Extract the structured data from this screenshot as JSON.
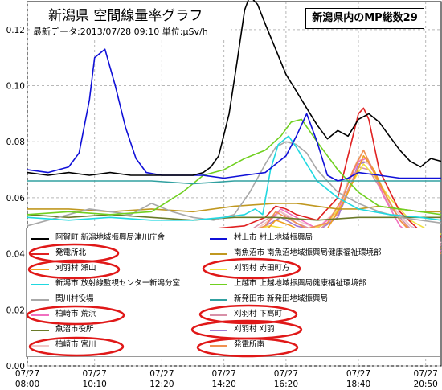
{
  "header": {
    "title": "新潟県 空間線量率グラフ",
    "subtitle": "最新データ:2013/07/28 09:10 単位:μSv/h",
    "mp_total": "新潟県内のMP総数29"
  },
  "legend": {
    "left": [
      {
        "label": "阿賀町 新潟地域振興局津川庁舎",
        "color": "#000000"
      },
      {
        "label": "発電所北",
        "color": "#e02020"
      },
      {
        "label": "刈羽村 瀬山",
        "color": "#f0a020"
      },
      {
        "label": "新潟市 放射線監視センター新潟分室",
        "color": "#20d8e0"
      },
      {
        "label": "関川村役場",
        "color": "#a8a8a8"
      },
      {
        "label": "柏崎市 荒浜",
        "color": "#f070c0"
      },
      {
        "label": "魚沼市役所",
        "color": "#6a7a28"
      },
      {
        "label": "柏崎市 宮川",
        "color": "#f0c8c8"
      }
    ],
    "right": [
      {
        "label": "村上市 村上地域振興局",
        "color": "#1010d8"
      },
      {
        "label": "南魚沼市 南魚沼地域振興局健康福祉環境部",
        "color": "#c09820"
      },
      {
        "label": "刈羽村 赤田町方",
        "color": "#f0e040"
      },
      {
        "label": "上越市 上越地域振興局健康福祉環境部",
        "color": "#70d020"
      },
      {
        "label": "新発田市 新発田地域振興局",
        "color": "#30a0a0"
      },
      {
        "label": "刈羽村 下高町",
        "color": "#d890a8"
      },
      {
        "label": "刈羽村 刈羽",
        "color": "#a078d0"
      },
      {
        "label": "発電所南",
        "color": "#f09050"
      }
    ]
  },
  "chart_data": {
    "type": "line",
    "title": "新潟県 空間線量率グラフ",
    "ylabel": "μSv/h",
    "ylim": [
      0,
      0.13
    ],
    "yticks": [
      "0.00",
      "0.02",
      "0.04",
      "0.06",
      "0.08",
      "0.10",
      "0.12"
    ],
    "xlim": [
      480,
      1280
    ],
    "xticks": [
      {
        "t": 480,
        "date": "07/27",
        "time": "08:00"
      },
      {
        "t": 610,
        "date": "07/27",
        "time": "10:10"
      },
      {
        "t": 740,
        "date": "07/27",
        "time": "12:20"
      },
      {
        "t": 860,
        "date": "07/27",
        "time": "14:20"
      },
      {
        "t": 980,
        "date": "07/27",
        "time": "16:20"
      },
      {
        "t": 1120,
        "date": "07/27",
        "time": "18:40"
      },
      {
        "t": 1250,
        "date": "07/27",
        "time": "20:50"
      }
    ],
    "series": [
      {
        "name": "阿賀町 新潟地域振興局津川庁舎",
        "color": "#000000",
        "t": [
          480,
          520,
          560,
          600,
          640,
          680,
          720,
          760,
          800,
          820,
          835,
          850,
          870,
          885,
          900,
          910,
          925,
          940,
          960,
          980,
          1000,
          1020,
          1040,
          1060,
          1080,
          1100,
          1120,
          1140,
          1160,
          1180,
          1200,
          1220,
          1240,
          1260,
          1280
        ],
        "y": [
          0.069,
          0.068,
          0.069,
          0.068,
          0.069,
          0.068,
          0.068,
          0.068,
          0.068,
          0.069,
          0.071,
          0.075,
          0.09,
          0.108,
          0.127,
          0.132,
          0.129,
          0.122,
          0.113,
          0.104,
          0.098,
          0.092,
          0.086,
          0.081,
          0.084,
          0.082,
          0.088,
          0.09,
          0.087,
          0.082,
          0.077,
          0.073,
          0.071,
          0.074,
          0.073
        ]
      },
      {
        "name": "村上市 村上地域振興局",
        "color": "#1010d8",
        "t": [
          480,
          520,
          560,
          580,
          600,
          610,
          630,
          650,
          670,
          690,
          710,
          740,
          780,
          820,
          860,
          900,
          940,
          980,
          1000,
          1020,
          1040,
          1060,
          1080,
          1100,
          1120,
          1160,
          1200,
          1240,
          1280
        ],
        "y": [
          0.07,
          0.069,
          0.071,
          0.076,
          0.095,
          0.11,
          0.113,
          0.1,
          0.085,
          0.074,
          0.069,
          0.068,
          0.068,
          0.068,
          0.067,
          0.068,
          0.069,
          0.075,
          0.082,
          0.09,
          0.08,
          0.068,
          0.066,
          0.067,
          0.069,
          0.068,
          0.067,
          0.067,
          0.067
        ]
      },
      {
        "name": "新発田市 新発田地域振興局",
        "color": "#30a0a0",
        "t": [
          480,
          560,
          640,
          720,
          800,
          880,
          960,
          1040,
          1120,
          1200,
          1280
        ],
        "y": [
          0.066,
          0.066,
          0.066,
          0.066,
          0.065,
          0.066,
          0.066,
          0.066,
          0.066,
          0.066,
          0.066
        ]
      },
      {
        "name": "上越市 上越地域振興局健康福祉環境部",
        "color": "#70d020",
        "t": [
          480,
          560,
          640,
          720,
          780,
          820,
          860,
          900,
          940,
          970,
          990,
          1010,
          1040,
          1080,
          1120,
          1160,
          1200,
          1240,
          1280
        ],
        "y": [
          0.054,
          0.055,
          0.054,
          0.055,
          0.062,
          0.068,
          0.07,
          0.074,
          0.077,
          0.082,
          0.087,
          0.088,
          0.08,
          0.07,
          0.062,
          0.057,
          0.056,
          0.055,
          0.054
        ]
      },
      {
        "name": "新潟市 放射線監視センター新潟分室",
        "color": "#20d8e0",
        "t": [
          480,
          560,
          640,
          720,
          800,
          860,
          900,
          920,
          935,
          950,
          965,
          985,
          1000,
          1020,
          1040,
          1080,
          1120,
          1180,
          1240,
          1280
        ],
        "y": [
          0.053,
          0.052,
          0.053,
          0.052,
          0.052,
          0.053,
          0.054,
          0.056,
          0.054,
          0.07,
          0.079,
          0.082,
          0.078,
          0.072,
          0.066,
          0.06,
          0.056,
          0.054,
          0.053,
          0.052
        ]
      },
      {
        "name": "関川村役場",
        "color": "#a8a8a8",
        "t": [
          480,
          520,
          560,
          600,
          640,
          680,
          720,
          760,
          800,
          840,
          880,
          910,
          940,
          960,
          980,
          1000,
          1020,
          1040,
          1080,
          1120,
          1160,
          1200,
          1240,
          1280
        ],
        "y": [
          0.05,
          0.052,
          0.054,
          0.056,
          0.055,
          0.054,
          0.058,
          0.055,
          0.053,
          0.052,
          0.054,
          0.062,
          0.072,
          0.078,
          0.08,
          0.079,
          0.076,
          0.07,
          0.062,
          0.058,
          0.055,
          0.053,
          0.052,
          0.051
        ]
      },
      {
        "name": "南魚沼市 南魚沼地域振興局健康福祉環境部",
        "color": "#c09820",
        "t": [
          480,
          560,
          640,
          720,
          800,
          880,
          960,
          1000,
          1040,
          1080,
          1120,
          1160,
          1200,
          1240,
          1280
        ],
        "y": [
          0.056,
          0.056,
          0.055,
          0.056,
          0.055,
          0.057,
          0.058,
          0.058,
          0.057,
          0.056,
          0.056,
          0.057,
          0.056,
          0.055,
          0.055
        ]
      },
      {
        "name": "魚沼市役所",
        "color": "#6a7a28",
        "t": [
          480,
          560,
          640,
          720,
          800,
          880,
          960,
          1040,
          1120,
          1200,
          1280
        ],
        "y": [
          0.054,
          0.053,
          0.054,
          0.053,
          0.052,
          0.053,
          0.053,
          0.052,
          0.053,
          0.053,
          0.053
        ]
      },
      {
        "name": "発電所北",
        "color": "#e02020",
        "t": [
          480,
          600,
          720,
          840,
          900,
          940,
          960,
          980,
          1000,
          1040,
          1080,
          1100,
          1120,
          1130,
          1140,
          1160,
          1200,
          1240,
          1280
        ],
        "y": [
          0.049,
          0.049,
          0.049,
          0.049,
          0.05,
          0.053,
          0.057,
          0.056,
          0.054,
          0.052,
          0.06,
          0.075,
          0.09,
          0.092,
          0.088,
          0.07,
          0.055,
          0.048,
          0.046
        ]
      },
      {
        "name": "発電所南",
        "color": "#f09050",
        "t": [
          480,
          600,
          720,
          840,
          900,
          940,
          960,
          990,
          1020,
          1060,
          1090,
          1110,
          1130,
          1140,
          1160,
          1200,
          1240,
          1280
        ],
        "y": [
          0.046,
          0.046,
          0.047,
          0.047,
          0.047,
          0.05,
          0.055,
          0.052,
          0.049,
          0.051,
          0.06,
          0.07,
          0.077,
          0.073,
          0.065,
          0.052,
          0.044,
          0.04
        ]
      },
      {
        "name": "刈羽村 瀬山",
        "color": "#f0a020",
        "t": [
          480,
          600,
          720,
          840,
          900,
          940,
          960,
          990,
          1020,
          1060,
          1090,
          1110,
          1130,
          1150,
          1170,
          1200,
          1240,
          1280
        ],
        "y": [
          0.044,
          0.044,
          0.045,
          0.045,
          0.045,
          0.048,
          0.052,
          0.05,
          0.047,
          0.049,
          0.058,
          0.066,
          0.075,
          0.07,
          0.062,
          0.052,
          0.045,
          0.042
        ]
      },
      {
        "name": "刈羽村 赤田町方",
        "color": "#f0e040",
        "t": [
          480,
          600,
          720,
          840,
          900,
          950,
          980,
          1020,
          1060,
          1090,
          1110,
          1130,
          1150,
          1180,
          1220,
          1260,
          1280
        ],
        "y": [
          0.047,
          0.047,
          0.048,
          0.048,
          0.048,
          0.05,
          0.049,
          0.048,
          0.051,
          0.058,
          0.066,
          0.072,
          0.068,
          0.06,
          0.052,
          0.048,
          0.047
        ]
      },
      {
        "name": "柏崎市 荒浜",
        "color": "#f070c0",
        "t": [
          480,
          600,
          720,
          840,
          900,
          940,
          970,
          1000,
          1040,
          1080,
          1100,
          1120,
          1135,
          1150,
          1170,
          1200,
          1240,
          1280
        ],
        "y": [
          0.043,
          0.043,
          0.044,
          0.044,
          0.045,
          0.05,
          0.056,
          0.053,
          0.049,
          0.055,
          0.065,
          0.073,
          0.074,
          0.069,
          0.06,
          0.05,
          0.044,
          0.041
        ]
      },
      {
        "name": "柏崎市 宮川",
        "color": "#f0c8c8",
        "t": [
          480,
          600,
          720,
          840,
          900,
          940,
          970,
          1000,
          1040,
          1080,
          1100,
          1120,
          1140,
          1160,
          1180,
          1220,
          1260,
          1280
        ],
        "y": [
          0.045,
          0.045,
          0.046,
          0.046,
          0.046,
          0.051,
          0.055,
          0.052,
          0.049,
          0.056,
          0.066,
          0.074,
          0.072,
          0.066,
          0.058,
          0.05,
          0.045,
          0.044
        ]
      },
      {
        "name": "刈羽村 下高町",
        "color": "#d890a8",
        "t": [
          480,
          600,
          720,
          840,
          900,
          940,
          970,
          1000,
          1040,
          1080,
          1100,
          1120,
          1140,
          1160,
          1180,
          1220,
          1260,
          1280
        ],
        "y": [
          0.046,
          0.046,
          0.046,
          0.047,
          0.047,
          0.052,
          0.055,
          0.051,
          0.048,
          0.054,
          0.063,
          0.071,
          0.07,
          0.064,
          0.057,
          0.049,
          0.044,
          0.043
        ]
      },
      {
        "name": "刈羽村 刈羽",
        "color": "#a078d0",
        "t": [
          480,
          600,
          720,
          840,
          900,
          940,
          970,
          1000,
          1040,
          1080,
          1100,
          1120,
          1140,
          1160,
          1180,
          1220,
          1260,
          1280
        ],
        "y": [
          0.045,
          0.045,
          0.045,
          0.046,
          0.046,
          0.05,
          0.053,
          0.05,
          0.048,
          0.053,
          0.062,
          0.072,
          0.073,
          0.066,
          0.058,
          0.05,
          0.046,
          0.044
        ]
      }
    ]
  },
  "colors": {
    "annotation": "#e01818",
    "grid": "#b8b8b8",
    "plot_bg": "#ffffff"
  }
}
